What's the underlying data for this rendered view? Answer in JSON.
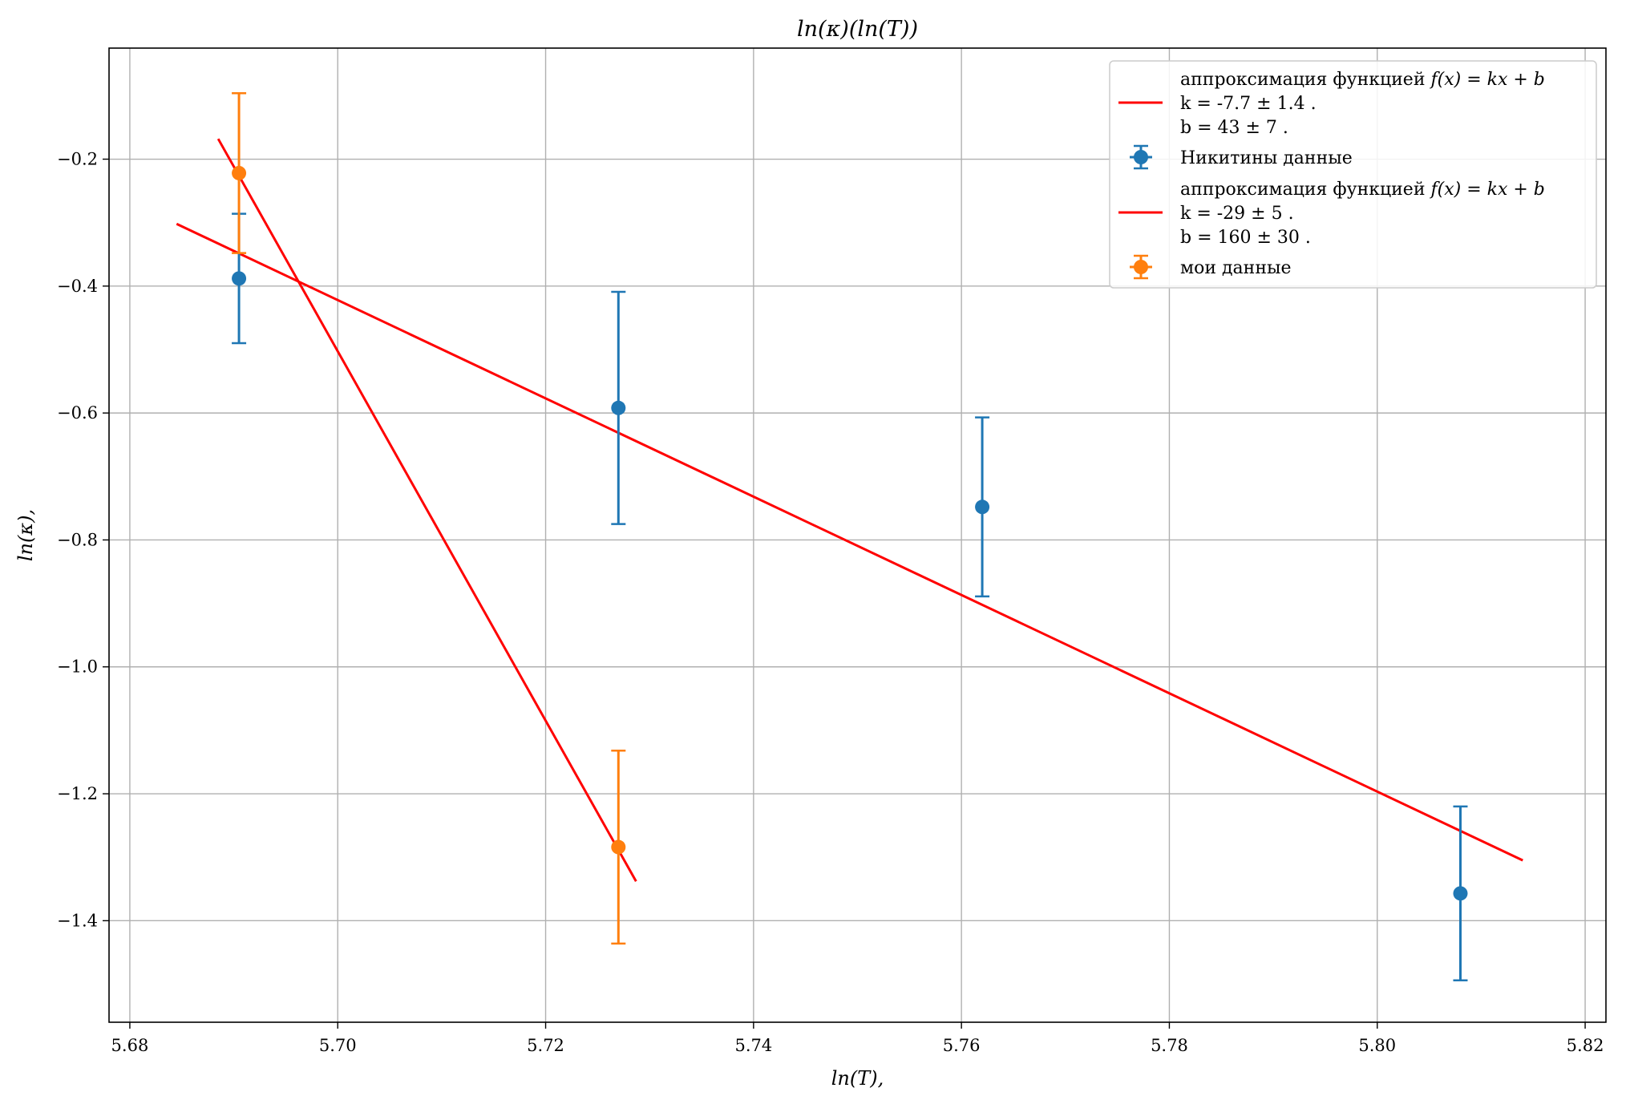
{
  "chart_data": {
    "type": "scatter",
    "title": "ln(κ)(ln(T))",
    "xlabel": "ln(T),",
    "ylabel": "ln(κ),",
    "xlim": [
      5.678,
      5.822
    ],
    "ylim": [
      -1.56,
      -0.025
    ],
    "xticks": [
      5.68,
      5.7,
      5.72,
      5.74,
      5.76,
      5.78,
      5.8,
      5.82
    ],
    "yticks": [
      -1.4,
      -1.2,
      -1.0,
      -0.8,
      -0.6,
      -0.4,
      -0.2
    ],
    "xtick_labels": [
      "5.68",
      "5.70",
      "5.72",
      "5.74",
      "5.76",
      "5.78",
      "5.80",
      "5.82"
    ],
    "ytick_labels": [
      "−1.4",
      "−1.2",
      "−1.0",
      "−0.8",
      "−0.6",
      "−0.4",
      "−0.2"
    ],
    "grid": true,
    "legend_position": "top-right",
    "series": [
      {
        "name": "Никитины данные",
        "kind": "errorbar",
        "color": "#1f77b4",
        "x": [
          5.6905,
          5.727,
          5.762,
          5.808
        ],
        "y": [
          -0.388,
          -0.592,
          -0.748,
          -1.357
        ],
        "yerr": [
          0.102,
          0.183,
          0.141,
          0.137
        ]
      },
      {
        "name": "мои данные",
        "kind": "errorbar",
        "color": "#ff7f0e",
        "x": [
          5.6905,
          5.727
        ],
        "y": [
          -0.222,
          -1.284
        ],
        "yerr": [
          0.126,
          0.152
        ]
      }
    ],
    "fits": [
      {
        "kind": "line",
        "color": "#ff0000",
        "x": [
          5.6845,
          5.814
        ],
        "y": [
          -0.302,
          -1.305
        ],
        "legend_prefix": "аппроксимация функцией ",
        "legend_formula": "f(x) = kx + b",
        "legend_k": "k = -7.7 ± 1.4 .",
        "legend_b": "b = 43 ± 7 ."
      },
      {
        "kind": "line",
        "color": "#ff0000",
        "x": [
          5.6885,
          5.7287
        ],
        "y": [
          -0.168,
          -1.338
        ],
        "legend_prefix": "аппроксимация функцией ",
        "legend_formula": "f(x) = kx + b",
        "legend_k": "k = -29 ± 5 .",
        "legend_b": "b = 160 ± 30 ."
      }
    ]
  }
}
